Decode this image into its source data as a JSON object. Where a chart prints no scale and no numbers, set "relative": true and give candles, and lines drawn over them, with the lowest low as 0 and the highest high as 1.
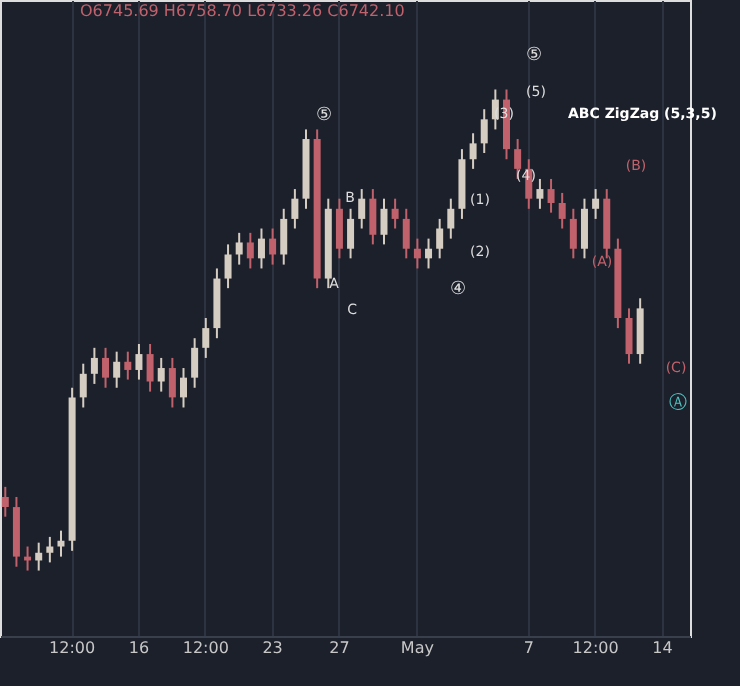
{
  "chart_data": {
    "type": "candlestick",
    "relative": true,
    "grid": "x",
    "categories": [
      null,
      null,
      null,
      null,
      null,
      null,
      "12:00",
      null,
      null,
      null,
      null,
      null,
      "16",
      null,
      null,
      null,
      null,
      null,
      "12:00",
      null,
      null,
      null,
      null,
      null,
      "23",
      null,
      null,
      null,
      null,
      null,
      "27",
      null,
      null,
      null,
      null,
      null,
      null,
      "May",
      null,
      null,
      null,
      null,
      null,
      null,
      null,
      null,
      null,
      "7",
      null,
      null,
      null,
      null,
      null,
      "12:00",
      null,
      null,
      null,
      null,
      null,
      "14",
      null,
      null
    ],
    "ohlc": [
      [
        0.153,
        0.174,
        0.112,
        0.132
      ],
      [
        0.132,
        0.153,
        0.008,
        0.029
      ],
      [
        0.029,
        0.05,
        0,
        0.021
      ],
      [
        0.021,
        0.058,
        0,
        0.037
      ],
      [
        0.037,
        0.07,
        0.017,
        0.05
      ],
      [
        0.05,
        0.083,
        0.029,
        0.062
      ],
      [
        0.062,
        0.38,
        0.041,
        0.36
      ],
      [
        0.36,
        0.43,
        0.339,
        0.409
      ],
      [
        0.409,
        0.463,
        0.388,
        0.442
      ],
      [
        0.442,
        0.463,
        0.38,
        0.401
      ],
      [
        0.401,
        0.455,
        0.38,
        0.434
      ],
      [
        0.434,
        0.455,
        0.397,
        0.417
      ],
      [
        0.417,
        0.471,
        0.397,
        0.45
      ],
      [
        0.45,
        0.471,
        0.372,
        0.393
      ],
      [
        0.393,
        0.442,
        0.372,
        0.421
      ],
      [
        0.421,
        0.442,
        0.339,
        0.36
      ],
      [
        0.36,
        0.421,
        0.339,
        0.401
      ],
      [
        0.401,
        0.483,
        0.38,
        0.463
      ],
      [
        0.463,
        0.525,
        0.442,
        0.504
      ],
      [
        0.504,
        0.628,
        0.483,
        0.607
      ],
      [
        0.607,
        0.678,
        0.587,
        0.657
      ],
      [
        0.657,
        0.702,
        0.636,
        0.682
      ],
      [
        0.682,
        0.702,
        0.628,
        0.649
      ],
      [
        0.649,
        0.711,
        0.628,
        0.69
      ],
      [
        0.69,
        0.711,
        0.636,
        0.657
      ],
      [
        0.657,
        0.752,
        0.636,
        0.731
      ],
      [
        0.731,
        0.793,
        0.711,
        0.773
      ],
      [
        0.773,
        0.917,
        0.752,
        0.897
      ],
      [
        0.897,
        0.917,
        0.587,
        0.607
      ],
      [
        0.607,
        0.773,
        0.587,
        0.752
      ],
      [
        0.752,
        0.773,
        0.649,
        0.669
      ],
      [
        0.669,
        0.752,
        0.649,
        0.731
      ],
      [
        0.731,
        0.793,
        0.711,
        0.773
      ],
      [
        0.773,
        0.793,
        0.678,
        0.698
      ],
      [
        0.698,
        0.773,
        0.678,
        0.752
      ],
      [
        0.752,
        0.773,
        0.711,
        0.731
      ],
      [
        0.731,
        0.752,
        0.649,
        0.669
      ],
      [
        0.669,
        0.69,
        0.628,
        0.649
      ],
      [
        0.649,
        0.69,
        0.628,
        0.669
      ],
      [
        0.669,
        0.731,
        0.649,
        0.711
      ],
      [
        0.711,
        0.773,
        0.69,
        0.752
      ],
      [
        0.752,
        0.876,
        0.731,
        0.855
      ],
      [
        0.855,
        0.909,
        0.835,
        0.888
      ],
      [
        0.888,
        0.959,
        0.868,
        0.938
      ],
      [
        0.938,
        1,
        0.917,
        0.979
      ],
      [
        0.979,
        1,
        0.855,
        0.876
      ],
      [
        0.876,
        0.897,
        0.814,
        0.835
      ],
      [
        0.835,
        0.855,
        0.752,
        0.773
      ],
      [
        0.773,
        0.814,
        0.752,
        0.793
      ],
      [
        0.793,
        0.814,
        0.744,
        0.764
      ],
      [
        0.764,
        0.785,
        0.711,
        0.731
      ],
      [
        0.731,
        0.752,
        0.649,
        0.669
      ],
      [
        0.669,
        0.773,
        0.649,
        0.752
      ],
      [
        0.752,
        0.793,
        0.731,
        0.773
      ],
      [
        0.773,
        0.793,
        0.649,
        0.669
      ],
      [
        0.669,
        0.69,
        0.504,
        0.525
      ],
      [
        0.525,
        0.545,
        0.43,
        0.45
      ],
      [
        0.45,
        0.566,
        0.43,
        0.545
      ],
      null,
      null,
      null,
      null
    ],
    "colors": [
      "#c0616b",
      "#c0616b",
      "#c0616b",
      "#d6cdc2",
      "#d6cdc2",
      "#d6cdc2",
      "#d6cdc2",
      "#d6cdc2",
      "#d6cdc2",
      "#c0616b",
      "#d6cdc2",
      "#c0616b",
      "#d6cdc2",
      "#c0616b",
      "#d6cdc2",
      "#c0616b",
      "#d6cdc2",
      "#d6cdc2",
      "#d6cdc2",
      "#d6cdc2",
      "#d6cdc2",
      "#d6cdc2",
      "#c0616b",
      "#d6cdc2",
      "#c0616b",
      "#d6cdc2",
      "#d6cdc2",
      "#d6cdc2",
      "#c0616b",
      "#d6cdc2",
      "#c0616b",
      "#d6cdc2",
      "#d6cdc2",
      "#c0616b",
      "#d6cdc2",
      "#c0616b",
      "#c0616b",
      "#c0616b",
      "#d6cdc2",
      "#d6cdc2",
      "#d6cdc2",
      "#d6cdc2",
      "#d6cdc2",
      "#d6cdc2",
      "#d6cdc2",
      "#c0616b",
      "#c0616b",
      "#c0616b",
      "#d6cdc2",
      "#c0616b",
      "#c0616b",
      "#c0616b",
      "#d6cdc2",
      "#d6cdc2",
      "#c0616b",
      "#c0616b",
      "#c0616b",
      "#d6cdc2",
      null,
      null,
      null,
      null
    ],
    "annotations": [
      "O6745.69 H6758.70 L6733.26 C6742.10",
      "ABC ZigZag (5,3,5)",
      "⑤",
      "B",
      "A",
      "C",
      "④",
      "(1)",
      "(2)",
      "(3)",
      "(4)",
      "⑤",
      "(5)",
      "(A)",
      "(B)",
      "(C)",
      "Ⓐ"
    ]
  }
}
